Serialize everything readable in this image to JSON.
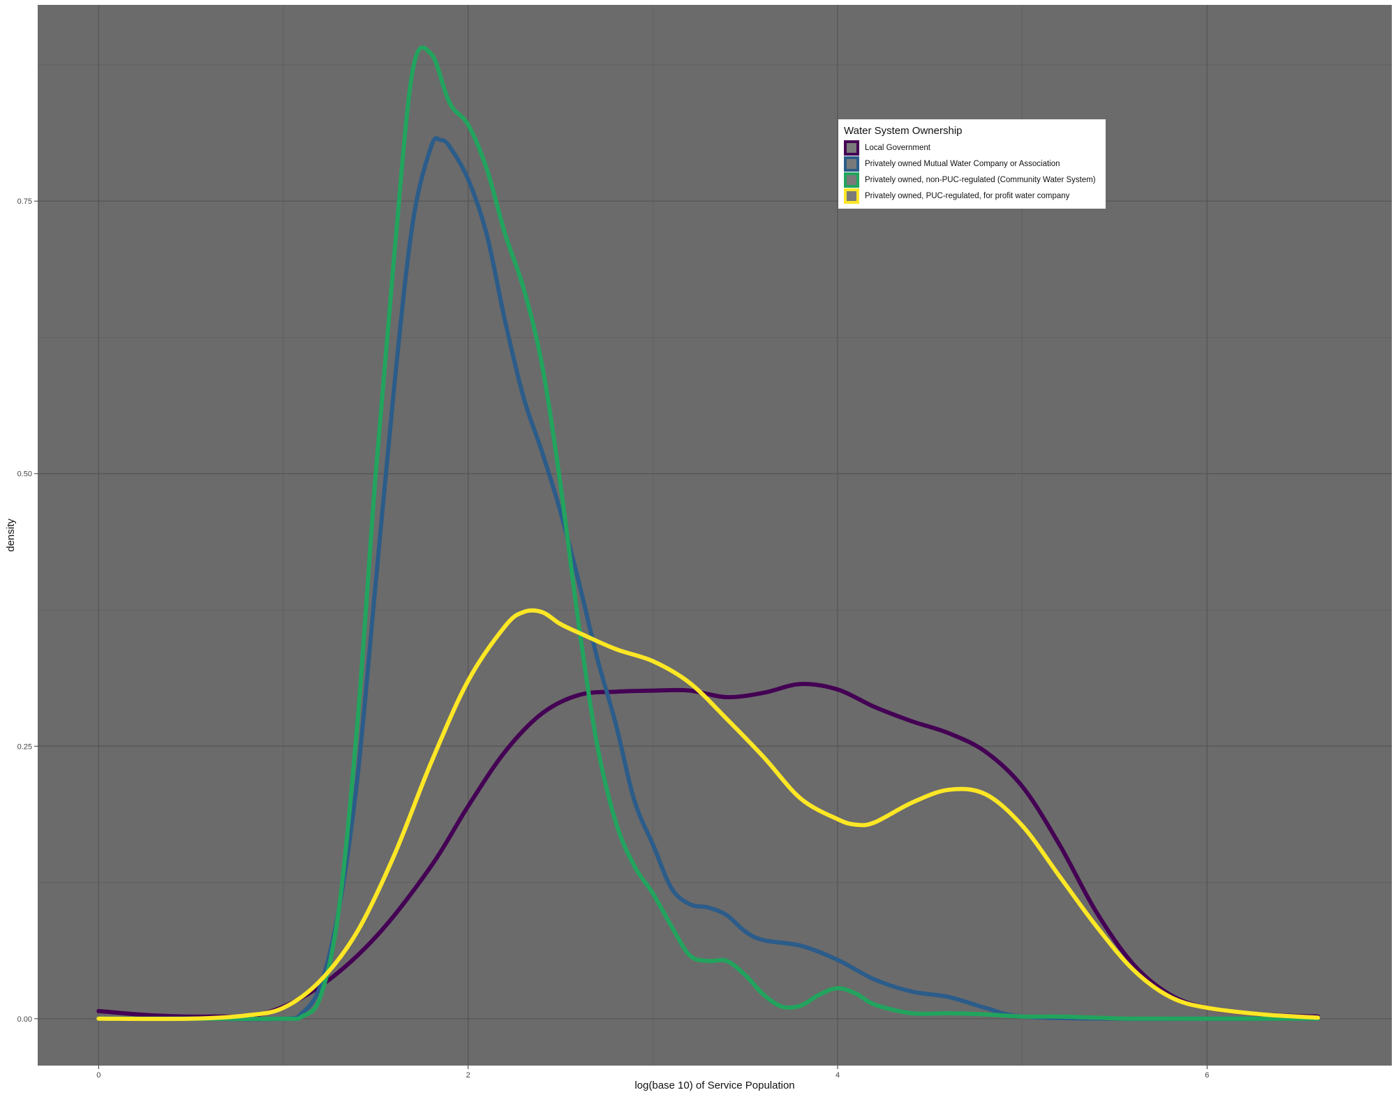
{
  "chart_data": {
    "type": "line",
    "title": "",
    "xlabel": "log(base 10) of Service Population",
    "ylabel": "density",
    "xlim": [
      -0.33,
      7.0
    ],
    "ylim": [
      -0.043,
      0.93
    ],
    "x_ticks": [
      0,
      2,
      4,
      6
    ],
    "x_tick_labels": [
      "0",
      "2",
      "4",
      "6"
    ],
    "y_ticks": [
      0.0,
      0.25,
      0.5,
      0.75
    ],
    "y_tick_labels": [
      "0.00",
      "0.25",
      "0.50",
      "0.75"
    ],
    "grid": true,
    "panel_background": "#6b6b6b",
    "legend": {
      "title": "Water System Ownership",
      "position": "top-right"
    },
    "series": [
      {
        "name": "Local Government",
        "color": "#440154",
        "points": [
          [
            0,
            0.007
          ],
          [
            0.3,
            0.003
          ],
          [
            0.6,
            0.002
          ],
          [
            0.9,
            0.005
          ],
          [
            1.2,
            0.03
          ],
          [
            1.5,
            0.075
          ],
          [
            1.8,
            0.14
          ],
          [
            2.0,
            0.195
          ],
          [
            2.2,
            0.245
          ],
          [
            2.4,
            0.28
          ],
          [
            2.6,
            0.297
          ],
          [
            2.8,
            0.3
          ],
          [
            3.0,
            0.301
          ],
          [
            3.2,
            0.301
          ],
          [
            3.4,
            0.295
          ],
          [
            3.6,
            0.299
          ],
          [
            3.8,
            0.307
          ],
          [
            4.0,
            0.302
          ],
          [
            4.2,
            0.286
          ],
          [
            4.4,
            0.273
          ],
          [
            4.6,
            0.262
          ],
          [
            4.8,
            0.245
          ],
          [
            5.0,
            0.213
          ],
          [
            5.2,
            0.16
          ],
          [
            5.4,
            0.098
          ],
          [
            5.6,
            0.05
          ],
          [
            5.8,
            0.022
          ],
          [
            6.0,
            0.01
          ],
          [
            6.3,
            0.004
          ],
          [
            6.6,
            0.002
          ]
        ]
      },
      {
        "name": "Privately owned Mutual Water Company or Association",
        "color": "#2b5c8a",
        "points": [
          [
            0,
            0
          ],
          [
            0.5,
            0
          ],
          [
            1.0,
            0.0
          ],
          [
            1.1,
            0.005
          ],
          [
            1.2,
            0.03
          ],
          [
            1.3,
            0.1
          ],
          [
            1.4,
            0.22
          ],
          [
            1.5,
            0.4
          ],
          [
            1.6,
            0.58
          ],
          [
            1.7,
            0.73
          ],
          [
            1.8,
            0.8
          ],
          [
            1.85,
            0.806
          ],
          [
            1.9,
            0.8
          ],
          [
            2.0,
            0.77
          ],
          [
            2.1,
            0.72
          ],
          [
            2.2,
            0.64
          ],
          [
            2.3,
            0.57
          ],
          [
            2.4,
            0.52
          ],
          [
            2.5,
            0.465
          ],
          [
            2.6,
            0.4
          ],
          [
            2.7,
            0.33
          ],
          [
            2.8,
            0.27
          ],
          [
            2.9,
            0.2
          ],
          [
            3.0,
            0.16
          ],
          [
            3.1,
            0.12
          ],
          [
            3.2,
            0.105
          ],
          [
            3.3,
            0.102
          ],
          [
            3.4,
            0.095
          ],
          [
            3.5,
            0.08
          ],
          [
            3.6,
            0.072
          ],
          [
            3.8,
            0.067
          ],
          [
            4.0,
            0.054
          ],
          [
            4.2,
            0.036
          ],
          [
            4.4,
            0.025
          ],
          [
            4.6,
            0.02
          ],
          [
            4.8,
            0.01
          ],
          [
            5.0,
            0.002
          ],
          [
            5.5,
            0.0
          ],
          [
            6.0,
            0.0
          ],
          [
            6.6,
            0.0
          ]
        ]
      },
      {
        "name": "Privately owned, non-PUC-regulated (Community Water System)",
        "color": "#22a45e",
        "points": [
          [
            0,
            0
          ],
          [
            0.5,
            0
          ],
          [
            1.0,
            0.0
          ],
          [
            1.1,
            0.002
          ],
          [
            1.2,
            0.02
          ],
          [
            1.3,
            0.1
          ],
          [
            1.4,
            0.27
          ],
          [
            1.5,
            0.5
          ],
          [
            1.6,
            0.7
          ],
          [
            1.7,
            0.87
          ],
          [
            1.8,
            0.885
          ],
          [
            1.9,
            0.84
          ],
          [
            2.0,
            0.82
          ],
          [
            2.1,
            0.78
          ],
          [
            2.2,
            0.72
          ],
          [
            2.3,
            0.67
          ],
          [
            2.4,
            0.6
          ],
          [
            2.5,
            0.49
          ],
          [
            2.6,
            0.36
          ],
          [
            2.7,
            0.25
          ],
          [
            2.8,
            0.18
          ],
          [
            2.9,
            0.14
          ],
          [
            3.0,
            0.115
          ],
          [
            3.1,
            0.085
          ],
          [
            3.2,
            0.058
          ],
          [
            3.3,
            0.053
          ],
          [
            3.4,
            0.053
          ],
          [
            3.5,
            0.04
          ],
          [
            3.6,
            0.022
          ],
          [
            3.7,
            0.011
          ],
          [
            3.8,
            0.012
          ],
          [
            3.9,
            0.022
          ],
          [
            4.0,
            0.028
          ],
          [
            4.1,
            0.023
          ],
          [
            4.2,
            0.013
          ],
          [
            4.4,
            0.005
          ],
          [
            4.6,
            0.005
          ],
          [
            4.8,
            0.004
          ],
          [
            5.0,
            0.002
          ],
          [
            5.2,
            0.002
          ],
          [
            5.4,
            0.001
          ],
          [
            5.6,
            0.0
          ],
          [
            6.0,
            0.0
          ],
          [
            6.6,
            0.0
          ]
        ]
      },
      {
        "name": "Privately owned, PUC-regulated, for profit water company",
        "color": "#fde725",
        "points": [
          [
            0,
            0
          ],
          [
            0.5,
            0.0
          ],
          [
            0.8,
            0.003
          ],
          [
            1.0,
            0.01
          ],
          [
            1.2,
            0.035
          ],
          [
            1.4,
            0.08
          ],
          [
            1.6,
            0.15
          ],
          [
            1.8,
            0.235
          ],
          [
            2.0,
            0.31
          ],
          [
            2.2,
            0.36
          ],
          [
            2.3,
            0.373
          ],
          [
            2.4,
            0.373
          ],
          [
            2.5,
            0.362
          ],
          [
            2.6,
            0.354
          ],
          [
            2.8,
            0.339
          ],
          [
            3.0,
            0.328
          ],
          [
            3.2,
            0.308
          ],
          [
            3.4,
            0.275
          ],
          [
            3.6,
            0.24
          ],
          [
            3.8,
            0.202
          ],
          [
            4.0,
            0.183
          ],
          [
            4.1,
            0.178
          ],
          [
            4.2,
            0.18
          ],
          [
            4.4,
            0.198
          ],
          [
            4.6,
            0.21
          ],
          [
            4.8,
            0.206
          ],
          [
            5.0,
            0.177
          ],
          [
            5.2,
            0.131
          ],
          [
            5.4,
            0.085
          ],
          [
            5.6,
            0.045
          ],
          [
            5.8,
            0.02
          ],
          [
            6.0,
            0.01
          ],
          [
            6.3,
            0.004
          ],
          [
            6.6,
            0.001
          ]
        ]
      }
    ]
  }
}
